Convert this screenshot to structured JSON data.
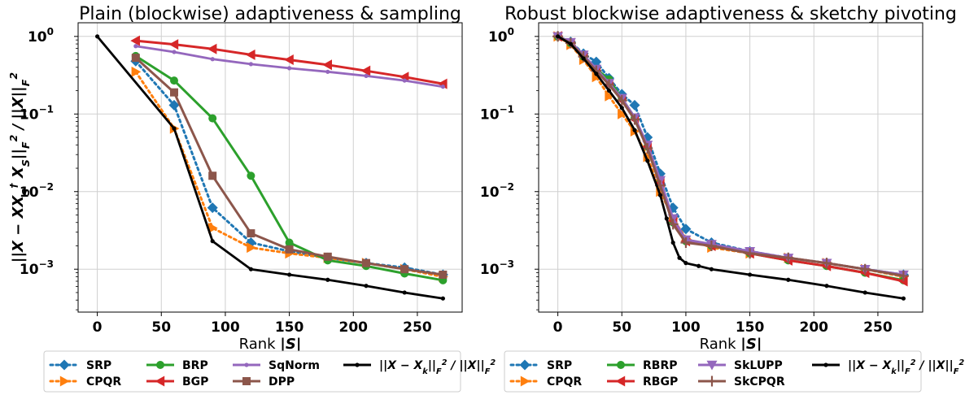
{
  "colors": {
    "blue": "#1f77b4",
    "orange": "#ff7f0e",
    "green": "#2ca02c",
    "red": "#d62728",
    "purple": "#9467bd",
    "brown": "#8c564b",
    "black": "#000000"
  },
  "ylabel": "||X − XX_S^† X_S||_F^2 / ||X||_F^2",
  "chart_data": [
    {
      "type": "line",
      "title": "Plain (blockwise) adaptiveness & sampling",
      "xlabel": "Rank |S|",
      "ylabel": "||X − XX_S^† X_S||_F^2 / ||X||_F^2",
      "yscale": "log",
      "xlim": [
        -15,
        285
      ],
      "ylim": [
        0.00028,
        1.5
      ],
      "xticks": [
        0,
        50,
        100,
        150,
        200,
        250
      ],
      "yticks": [
        "10^0",
        "10^-1",
        "10^-2",
        "10^-3"
      ],
      "grid": true,
      "legend_position": "below",
      "legend_columns": 4,
      "series": [
        {
          "name": "SRP",
          "color": "blue",
          "linestyle": "dotted",
          "marker": "diamond",
          "x": [
            30,
            60,
            90,
            120,
            150,
            180,
            210,
            240,
            270
          ],
          "y": [
            0.48,
            0.13,
            0.0062,
            0.0022,
            0.0017,
            0.0014,
            0.0012,
            0.00105,
            0.00085
          ]
        },
        {
          "name": "CPQR",
          "color": "orange",
          "linestyle": "dotted",
          "marker": "triangle-right",
          "x": [
            30,
            60,
            90,
            120,
            150,
            180,
            210,
            240,
            270
          ],
          "y": [
            0.35,
            0.065,
            0.0034,
            0.0019,
            0.0016,
            0.0014,
            0.0012,
            0.001,
            0.0008
          ]
        },
        {
          "name": "BRP",
          "color": "green",
          "linestyle": "solid",
          "marker": "circle",
          "x": [
            30,
            60,
            90,
            120,
            150,
            180,
            210,
            240,
            270
          ],
          "y": [
            0.56,
            0.27,
            0.088,
            0.016,
            0.0022,
            0.0013,
            0.0011,
            0.00088,
            0.00072
          ]
        },
        {
          "name": "BGP",
          "color": "red",
          "linestyle": "solid",
          "marker": "triangle-left",
          "x": [
            30,
            60,
            90,
            120,
            150,
            180,
            210,
            240,
            270
          ],
          "y": [
            0.88,
            0.79,
            0.69,
            0.58,
            0.5,
            0.43,
            0.36,
            0.3,
            0.245
          ]
        },
        {
          "name": "SqNorm",
          "color": "purple",
          "linestyle": "solid",
          "marker": "dot",
          "x": [
            30,
            60,
            90,
            120,
            150,
            180,
            210,
            240,
            270
          ],
          "y": [
            0.75,
            0.63,
            0.51,
            0.44,
            0.39,
            0.35,
            0.31,
            0.27,
            0.225
          ]
        },
        {
          "name": "DPP",
          "color": "brown",
          "linestyle": "solid",
          "marker": "square",
          "x": [
            30,
            60,
            90,
            120,
            150,
            180,
            210,
            240,
            270
          ],
          "y": [
            0.53,
            0.19,
            0.016,
            0.0029,
            0.0018,
            0.00145,
            0.0012,
            0.001,
            0.00085
          ]
        },
        {
          "name": "||X − X_k||_F^2 / ||X||_F^2",
          "color": "black",
          "linestyle": "solid",
          "marker": "dot",
          "x": [
            0,
            60,
            90,
            120,
            150,
            180,
            210,
            240,
            270
          ],
          "y": [
            1.0,
            0.065,
            0.0023,
            0.001,
            0.00085,
            0.00073,
            0.00061,
            0.0005,
            0.00042
          ]
        }
      ]
    },
    {
      "type": "line",
      "title": "Robust blockwise adaptiveness & sketchy pivoting",
      "xlabel": "Rank |S|",
      "ylabel": "",
      "yscale": "log",
      "xlim": [
        -15,
        285
      ],
      "ylim": [
        0.00028,
        1.5
      ],
      "xticks": [
        0,
        50,
        100,
        150,
        200,
        250
      ],
      "yticks": [
        "10^0",
        "10^-1",
        "10^-2",
        "10^-3"
      ],
      "grid": true,
      "legend_position": "below",
      "legend_columns": 4,
      "series": [
        {
          "name": "SRP",
          "color": "blue",
          "linestyle": "dotted",
          "marker": "diamond",
          "x": [
            0,
            10,
            20,
            30,
            40,
            50,
            60,
            70,
            80,
            90,
            100,
            120,
            150,
            180,
            210,
            240,
            270
          ],
          "y": [
            1.0,
            0.85,
            0.6,
            0.47,
            0.29,
            0.18,
            0.13,
            0.05,
            0.017,
            0.0062,
            0.0033,
            0.0022,
            0.0017,
            0.0014,
            0.0012,
            0.001,
            0.00085
          ]
        },
        {
          "name": "CPQR",
          "color": "orange",
          "linestyle": "dotted",
          "marker": "triangle-right",
          "x": [
            0,
            10,
            20,
            30,
            40,
            50,
            60,
            70,
            80,
            90,
            100,
            120,
            150,
            180,
            210,
            240,
            270
          ],
          "y": [
            1.0,
            0.78,
            0.5,
            0.3,
            0.17,
            0.1,
            0.06,
            0.028,
            0.01,
            0.0045,
            0.0025,
            0.0019,
            0.0016,
            0.0014,
            0.0012,
            0.001,
            0.0008
          ]
        },
        {
          "name": "RBRP",
          "color": "green",
          "linestyle": "solid",
          "marker": "circle",
          "x": [
            0,
            10,
            20,
            30,
            40,
            50,
            60,
            70,
            80,
            90,
            100,
            120,
            150,
            180,
            210,
            240,
            270
          ],
          "y": [
            1.0,
            0.82,
            0.55,
            0.38,
            0.28,
            0.16,
            0.09,
            0.038,
            0.013,
            0.004,
            0.0023,
            0.002,
            0.0016,
            0.0013,
            0.0011,
            0.0009,
            0.00072
          ]
        },
        {
          "name": "RBGP",
          "color": "red",
          "linestyle": "solid",
          "marker": "triangle-left",
          "x": [
            0,
            10,
            20,
            30,
            40,
            50,
            60,
            70,
            80,
            90,
            100,
            120,
            150,
            180,
            210,
            240,
            270
          ],
          "y": [
            1.0,
            0.82,
            0.55,
            0.36,
            0.24,
            0.15,
            0.085,
            0.038,
            0.013,
            0.0042,
            0.0023,
            0.002,
            0.0016,
            0.0013,
            0.0011,
            0.0009,
            0.0007
          ]
        },
        {
          "name": "SkLUPP",
          "color": "purple",
          "linestyle": "solid",
          "marker": "triangle-down",
          "x": [
            0,
            10,
            20,
            30,
            40,
            50,
            60,
            70,
            80,
            90,
            100,
            120,
            150,
            180,
            210,
            240,
            270
          ],
          "y": [
            1.0,
            0.84,
            0.58,
            0.38,
            0.25,
            0.16,
            0.09,
            0.04,
            0.014,
            0.0045,
            0.0024,
            0.0021,
            0.0017,
            0.0014,
            0.0012,
            0.001,
            0.00085
          ]
        },
        {
          "name": "SkCPQR",
          "color": "brown",
          "linestyle": "solid",
          "marker": "plus",
          "x": [
            0,
            10,
            20,
            30,
            40,
            50,
            60,
            70,
            80,
            90,
            100,
            120,
            150,
            180,
            210,
            240,
            270
          ],
          "y": [
            1.0,
            0.82,
            0.55,
            0.36,
            0.24,
            0.15,
            0.085,
            0.036,
            0.012,
            0.0038,
            0.0022,
            0.002,
            0.0016,
            0.0014,
            0.0012,
            0.001,
            0.00082
          ]
        },
        {
          "name": "||X − X_k||_F^2 / ||X||_F^2",
          "color": "black",
          "linestyle": "solid",
          "marker": "dot",
          "x": [
            0,
            10,
            20,
            30,
            40,
            50,
            60,
            70,
            80,
            85,
            90,
            95,
            100,
            110,
            120,
            150,
            180,
            210,
            240,
            270
          ],
          "y": [
            1.0,
            0.8,
            0.52,
            0.33,
            0.2,
            0.12,
            0.062,
            0.025,
            0.009,
            0.0045,
            0.0022,
            0.0014,
            0.0012,
            0.0011,
            0.001,
            0.00085,
            0.00073,
            0.00061,
            0.0005,
            0.00042
          ]
        }
      ]
    }
  ]
}
